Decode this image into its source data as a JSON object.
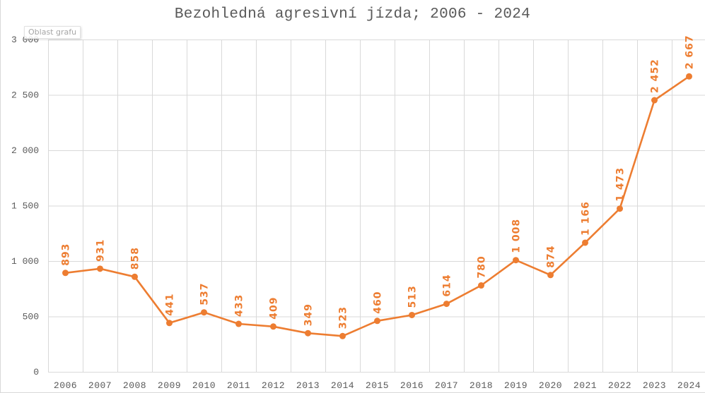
{
  "chart_data": {
    "type": "line",
    "title": "Bezohledná agresivní jízda; 2006 - 2024",
    "xlabel": "",
    "ylabel": "",
    "categories": [
      "2006",
      "2007",
      "2008",
      "2009",
      "2010",
      "2011",
      "2012",
      "2013",
      "2014",
      "2015",
      "2016",
      "2017",
      "2018",
      "2019",
      "2020",
      "2021",
      "2022",
      "2023",
      "2024"
    ],
    "series": [
      {
        "name": "Bezohledná agresivní jízda",
        "color": "#ED7D31",
        "values": [
          893,
          931,
          858,
          441,
          537,
          433,
          409,
          349,
          323,
          460,
          513,
          614,
          780,
          1008,
          874,
          1166,
          1473,
          2452,
          2667
        ],
        "data_labels": [
          "893",
          "931",
          "858",
          "441",
          "537",
          "433",
          "409",
          "349",
          "323",
          "460",
          "513",
          "614",
          "780",
          "1 008",
          "874",
          "1 166",
          "1 473",
          "2 452",
          "2 667"
        ]
      }
    ],
    "ylim": [
      0,
      3000
    ],
    "yticks": [
      0,
      500,
      1000,
      1500,
      2000,
      2500,
      3000
    ],
    "ytick_labels": [
      "0",
      "500",
      "1 000",
      "1 500",
      "2 000",
      "2 500",
      "3 000"
    ],
    "grid": {
      "horizontal": true,
      "vertical": true,
      "color": "#d9d9d9"
    },
    "legend": "none",
    "data_labels_rotated": true
  },
  "tooltip": {
    "text": "Oblast grafu"
  }
}
